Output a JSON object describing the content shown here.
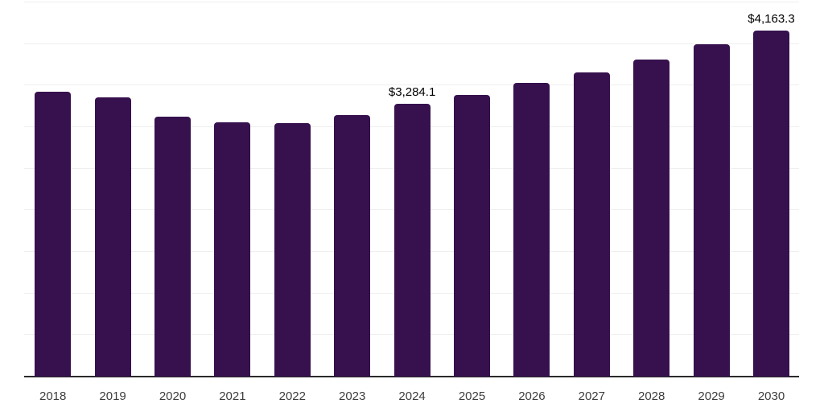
{
  "chart_data": {
    "type": "bar",
    "title": "",
    "xlabel": "",
    "ylabel": "",
    "categories": [
      "2018",
      "2019",
      "2020",
      "2021",
      "2022",
      "2023",
      "2024",
      "2025",
      "2026",
      "2027",
      "2028",
      "2029",
      "2030"
    ],
    "values": [
      3430,
      3360,
      3130,
      3055,
      3045,
      3150,
      3284.1,
      3390,
      3530,
      3655,
      3810,
      3995,
      4163.3
    ],
    "data_labels": [
      "",
      "",
      "",
      "",
      "",
      "",
      "$3,284.1",
      "",
      "",
      "",
      "",
      "",
      "$4,163.3"
    ],
    "ylim": [
      0,
      4500
    ],
    "gridline_step": 500,
    "grid": true,
    "y_axis_labels_visible": false,
    "legend": "none",
    "colors": {
      "bar": "#36114E",
      "gridline": "#efefef",
      "axis": "#2a2a2a",
      "value_label": "#000000",
      "tick_label": "#3d3d3d"
    }
  }
}
